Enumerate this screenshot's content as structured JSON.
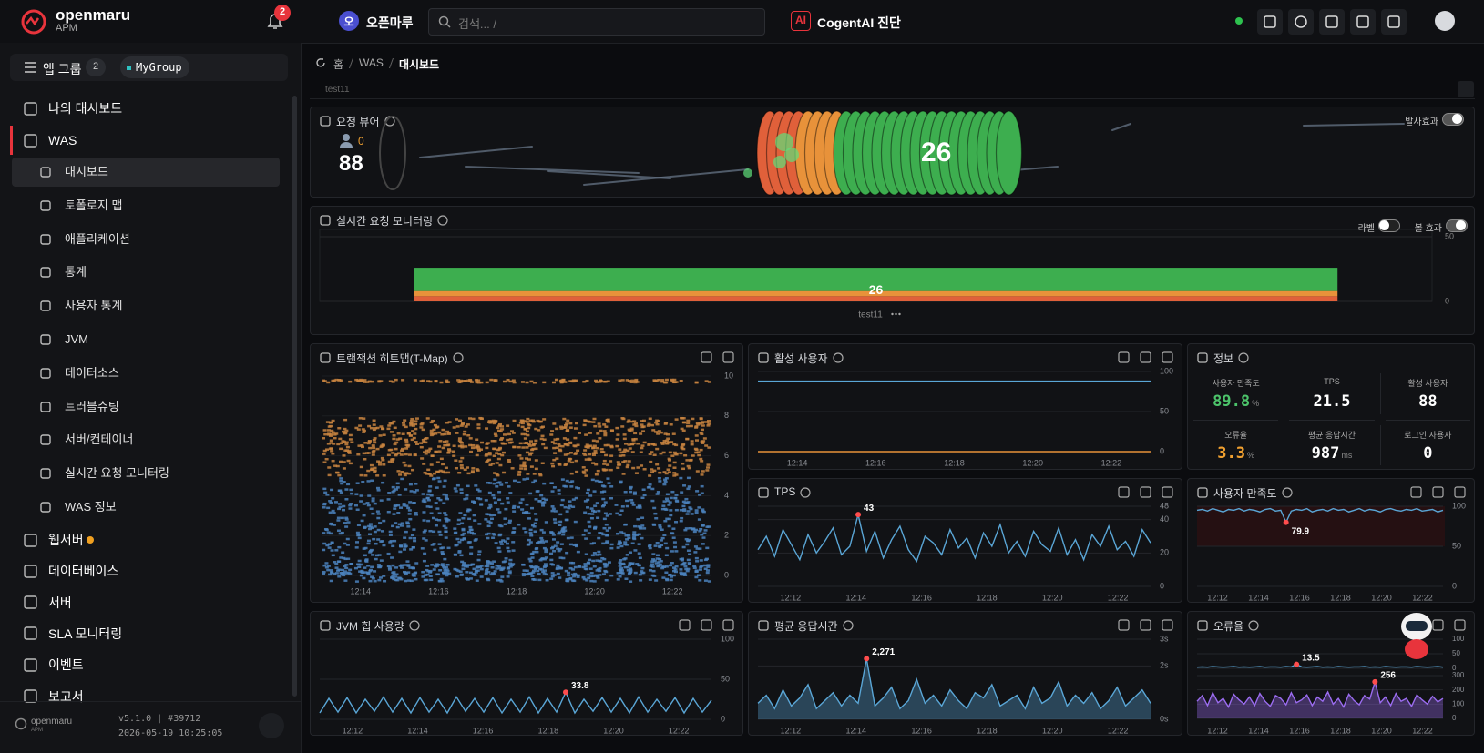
{
  "header": {
    "brand": "openmaru",
    "brand_sub": "APM",
    "notifications": 2,
    "org_initial": "오",
    "org": "오픈마루",
    "search_placeholder": "검색... /",
    "ai_badge": "AI",
    "ai_label": "CogentAI 진단"
  },
  "sidebar": {
    "app_group": "앱 그룹",
    "app_group_count": 2,
    "group": "MyGroup",
    "menu": [
      {
        "label": "나의 대시보드"
      },
      {
        "label": "WAS",
        "active": true,
        "children": [
          {
            "label": "대시보드",
            "active": true
          },
          {
            "label": "토폴로지 맵"
          },
          {
            "label": "애플리케이션"
          },
          {
            "label": "통계"
          },
          {
            "label": "사용자 통계"
          },
          {
            "label": "JVM"
          },
          {
            "label": "데이터소스"
          },
          {
            "label": "트러블슈팅"
          },
          {
            "label": "서버/컨테이너"
          },
          {
            "label": "실시간 요청 모니터링"
          },
          {
            "label": "WAS 정보"
          }
        ]
      },
      {
        "label": "웹서버",
        "status_color": "#f0a020"
      },
      {
        "label": "데이터베이스"
      },
      {
        "label": "서버"
      },
      {
        "label": "SLA 모니터링"
      },
      {
        "label": "이벤트"
      },
      {
        "label": "보고서"
      }
    ],
    "logo": "openmaru",
    "logo_sub": "APM",
    "version": "v5.1.0 | #39712",
    "timestamp": "2026-05-19 10:25:05"
  },
  "breadcrumb": [
    "홈",
    "WAS",
    "대시보드"
  ],
  "tab": "test11",
  "panels": {
    "viewer": {
      "title": "요청 뷰어",
      "users": 88,
      "waiting": 0,
      "active": 26,
      "toggle": {
        "label": "발사효과",
        "on": true
      }
    },
    "realtime": {
      "title": "실시간 요청 모니터링",
      "toggles": [
        {
          "label": "라벨",
          "on": false
        },
        {
          "label": "볼 효과",
          "on": true
        }
      ],
      "chart": {
        "type": "bar",
        "categories": [
          "test11"
        ],
        "total": 26,
        "ylim": [
          0,
          50
        ],
        "yticks": [
          0,
          50
        ],
        "series": [
          {
            "color": "#e0603a",
            "values": [
              4
            ]
          },
          {
            "color": "#e8923a",
            "values": [
              4
            ]
          },
          {
            "color": "#3dae4f",
            "values": [
              18
            ]
          }
        ]
      }
    },
    "heatmap": {
      "title": "트랜잭션 히트맵(T-Map)",
      "chart": {
        "type": "heatmap",
        "xlabels": [
          "12:14",
          "12:16",
          "12:18",
          "12:20",
          "12:22"
        ],
        "ylim": [
          0,
          10
        ],
        "yticks": [
          0,
          2,
          4,
          6,
          8,
          10
        ],
        "series": [
          {
            "color": "#c8843f",
            "y": [
              9.8,
              7.5,
              6.5,
              5.5
            ],
            "counts": [
              [
                2,
                3,
                1,
                2,
                3,
                2,
                1,
                3,
                2,
                2,
                3,
                1
              ],
              [
                5,
                4,
                6,
                5,
                4,
                5,
                6,
                4,
                5,
                5,
                4,
                6
              ],
              [
                6,
                5,
                6,
                6,
                5,
                6,
                5,
                6,
                6,
                5,
                6,
                5
              ],
              [
                3,
                4,
                3,
                4,
                3,
                3,
                4,
                3,
                4,
                3,
                4,
                3
              ]
            ]
          },
          {
            "color": "#4b82bd",
            "y": [
              4.5,
              3.5,
              2.5,
              1.5,
              0.5,
              0.2
            ],
            "counts": [
              [
                3,
                2,
                3,
                3,
                2,
                3,
                2,
                3,
                3,
                2,
                3,
                2
              ],
              [
                4,
                3,
                4,
                4,
                3,
                4,
                4,
                3,
                4,
                3,
                4,
                4
              ],
              [
                4,
                4,
                3,
                4,
                4,
                4,
                3,
                4,
                4,
                4,
                3,
                4
              ],
              [
                3,
                4,
                4,
                3,
                4,
                3,
                4,
                4,
                3,
                4,
                4,
                3
              ],
              [
                4,
                3,
                4,
                4,
                3,
                4,
                4,
                3,
                4,
                4,
                3,
                4
              ],
              [
                5,
                5,
                5,
                5,
                5,
                5,
                5,
                5,
                5,
                5,
                5,
                5
              ]
            ]
          }
        ]
      }
    },
    "active_users": {
      "title": "활성 사용자",
      "chart": {
        "type": "line",
        "xlabels": [
          "12:14",
          "12:16",
          "12:18",
          "12:20",
          "12:22"
        ],
        "ylim": [
          0,
          100
        ],
        "yticks": [
          0,
          50,
          100
        ],
        "series": [
          {
            "color": "#5aa6d6",
            "values": [
              88,
              88,
              88,
              88,
              88,
              88,
              88,
              88,
              88,
              88,
              88,
              88
            ]
          },
          {
            "color": "#e8923a",
            "values": [
              0,
              0,
              0,
              0,
              0,
              0,
              0,
              0,
              0,
              0,
              0,
              0
            ]
          }
        ]
      }
    },
    "info": {
      "title": "정보",
      "stats": [
        {
          "label": "사용자 만족도",
          "value": 89.8,
          "unit": "%",
          "color": "#4cc36a"
        },
        {
          "label": "TPS",
          "value": 21.5,
          "color": "#ffffff"
        },
        {
          "label": "활성 사용자",
          "value": 88,
          "color": "#ffffff"
        },
        {
          "label": "오류율",
          "value": 3.3,
          "unit": "%",
          "color": "#f0a030"
        },
        {
          "label": "평균 응답시간",
          "value": 987,
          "unit": "ms",
          "color": "#ffffff"
        },
        {
          "label": "로그인 사용자",
          "value": 0,
          "color": "#ffffff"
        }
      ]
    },
    "tps": {
      "title": "TPS",
      "chart": {
        "type": "line",
        "xlabels": [
          "12:12",
          "12:14",
          "12:16",
          "12:18",
          "12:20",
          "12:22"
        ],
        "ylim": [
          0,
          48
        ],
        "yticks": [
          0,
          20,
          40,
          48
        ],
        "highlight": "max",
        "series": [
          {
            "color": "#5aa6d6",
            "values": [
              22,
              30,
              18,
              34,
              25,
              16,
              31,
              20,
              27,
              35,
              19,
              24,
              43,
              21,
              33,
              17,
              28,
              36,
              22,
              15,
              30,
              26,
              19,
              34,
              23,
              29,
              17,
              32,
              24,
              37,
              20,
              27,
              18,
              33,
              25,
              21,
              35,
              19,
              28,
              16,
              31,
              24,
              36,
              22,
              27,
              18,
              34,
              26
            ]
          }
        ]
      }
    },
    "satisfaction": {
      "title": "사용자 만족도",
      "chart": {
        "type": "line",
        "xlabels": [
          "12:12",
          "12:14",
          "12:16",
          "12:18",
          "12:20",
          "12:22"
        ],
        "ylim": [
          0,
          100
        ],
        "yticks": [
          0,
          50,
          100
        ],
        "highlight": "min",
        "series": [
          {
            "color": "#5aa6d6",
            "values": [
              95,
              96,
              94,
              97,
              95,
              93,
              96,
              95,
              97,
              94,
              96,
              95,
              93,
              96,
              97,
              94,
              95,
              79.9,
              94,
              96,
              95,
              97,
              93,
              95,
              96,
              94,
              97,
              95,
              96,
              93,
              95,
              97,
              94,
              96,
              95,
              93,
              96,
              97,
              95,
              94,
              96,
              95,
              97,
              94,
              95,
              96,
              93,
              95
            ]
          }
        ]
      }
    },
    "jvm": {
      "title": "JVM 힙 사용량",
      "chart": {
        "type": "line",
        "xlabels": [
          "12:12",
          "12:14",
          "12:16",
          "12:18",
          "12:20",
          "12:22"
        ],
        "ylim": [
          0,
          100
        ],
        "yticks": [
          0,
          50,
          100
        ],
        "highlight": "max",
        "series": [
          {
            "color": "#5aa6d6",
            "values": [
              8,
              26,
              9,
              27,
              8,
              25,
              10,
              28,
              9,
              26,
              8,
              27,
              9,
              25,
              8,
              28,
              10,
              26,
              9,
              27,
              8,
              25,
              9,
              28,
              8,
              26,
              9,
              33.8,
              8,
              25,
              10,
              27,
              9,
              26,
              8,
              28,
              9,
              25,
              10,
              27,
              8,
              26,
              9,
              24
            ]
          }
        ]
      }
    },
    "avg_response": {
      "title": "평균 응답시간",
      "chart": {
        "type": "line",
        "xlabels": [
          "12:12",
          "12:14",
          "12:16",
          "12:18",
          "12:20",
          "12:22"
        ],
        "ylim": [
          0,
          3
        ],
        "yticks": [
          {
            "value": 0,
            "label": "0s"
          },
          {
            "value": 2,
            "label": "2s"
          },
          {
            "value": 3,
            "label": "3s"
          }
        ],
        "highlight": "max",
        "series": [
          {
            "color": "#5aa6d6",
            "area": true,
            "values": [
              0.6,
              0.9,
              0.4,
              1.1,
              0.5,
              0.8,
              1.3,
              0.4,
              0.7,
              1.0,
              0.5,
              0.9,
              0.6,
              2.271,
              0.5,
              0.8,
              1.2,
              0.4,
              0.7,
              1.5,
              0.6,
              0.9,
              0.5,
              1.1,
              0.7,
              0.4,
              1.0,
              0.8,
              1.3,
              0.5,
              0.7,
              0.9,
              0.4,
              1.2,
              0.6,
              0.8,
              1.4,
              0.5,
              0.9,
              0.6,
              1.0,
              0.4,
              0.7,
              1.2,
              0.5,
              0.8,
              1.1,
              0.6
            ],
            "value_labels": [
              null,
              null,
              null,
              null,
              null,
              null,
              null,
              null,
              null,
              null,
              null,
              null,
              null,
              "2,271",
              null,
              null,
              null,
              null,
              null,
              null,
              null,
              null,
              null,
              null,
              null,
              null,
              null,
              null,
              null,
              null,
              null,
              null,
              null,
              null,
              null,
              null,
              null,
              null,
              null,
              null,
              null,
              null,
              null,
              null,
              null,
              null,
              null,
              null
            ]
          }
        ]
      }
    },
    "errors": {
      "title": "오류율",
      "charts": [
        {
          "type": "line",
          "ylim": [
            0,
            100
          ],
          "yticks": [
            0,
            50,
            100
          ],
          "highlight": "max",
          "series": [
            {
              "color": "#5aa6d6",
              "values": [
                4,
                5,
                4,
                6,
                5,
                4,
                5,
                6,
                4,
                5,
                4,
                5,
                6,
                4,
                5,
                5,
                4,
                6,
                5,
                13.5,
                5,
                4,
                5,
                6,
                4,
                5,
                4,
                6,
                5,
                4,
                5,
                5,
                6,
                4,
                5,
                4,
                6,
                5,
                4,
                5,
                5,
                4,
                6,
                5,
                4,
                5,
                6,
                4
              ]
            }
          ]
        },
        {
          "type": "line",
          "xlabels": [
            "12:12",
            "12:14",
            "12:16",
            "12:18",
            "12:20",
            "12:22"
          ],
          "ylim": [
            0,
            300
          ],
          "yticks": [
            0,
            100,
            200,
            300
          ],
          "highlight": "max",
          "series": [
            {
              "color": "#9b6cf0",
              "area": true,
              "values": [
                120,
                160,
                90,
                180,
                110,
                140,
                80,
                170,
                130,
                100,
                150,
                90,
                175,
                120,
                85,
                160,
                140,
                95,
                180,
                110,
                130,
                165,
                90,
                150,
                120,
                185,
                100,
                140,
                80,
                170,
                125,
                95,
                160,
                135,
                256,
                110,
                150,
                90,
                175,
                120,
                140,
                85,
                165,
                130,
                100,
                155,
                115,
                140
              ]
            }
          ]
        }
      ]
    }
  }
}
